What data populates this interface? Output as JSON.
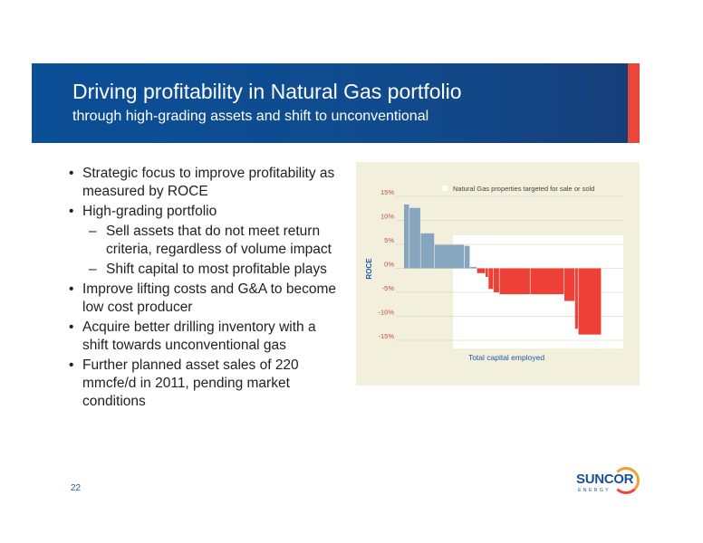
{
  "header": {
    "title": "Driving profitability in Natural Gas portfolio",
    "subtitle": "through high-grading assets and shift to unconventional"
  },
  "bullets": [
    {
      "level": 1,
      "text": "Strategic focus to improve profitability as measured by ROCE"
    },
    {
      "level": 1,
      "text": "High-grading portfolio"
    },
    {
      "level": 2,
      "text": "Sell assets that do not meet return criteria, regardless of volume impact"
    },
    {
      "level": 2,
      "text": "Shift capital to most profitable plays"
    },
    {
      "level": 1,
      "text": "Improve lifting costs and G&A to become low cost producer"
    },
    {
      "level": 1,
      "text": "Acquire better drilling inventory with a shift towards unconventional gas"
    },
    {
      "level": 1,
      "text": "Further planned asset sales of 220 mmcfe/d in 2011, pending market conditions"
    }
  ],
  "bullet_markers": {
    "level1": "•",
    "level2": "–"
  },
  "chart_data": {
    "type": "bar",
    "title": "",
    "xlabel": "Total capital employed",
    "ylabel": "ROCE",
    "ylim": [
      -15,
      15
    ],
    "yticks": [
      "15%",
      "10%",
      "5%",
      "0%",
      "-5%",
      "-10%",
      "-15%"
    ],
    "ytick_values": [
      15,
      10,
      5,
      0,
      -5,
      -10,
      -15
    ],
    "legend": [
      "Natural Gas properties targeted for sale or sold"
    ],
    "x_range": [
      0,
      100
    ],
    "bars": [
      {
        "start": 0,
        "end": 2.8,
        "value": 13.3,
        "group": "positive"
      },
      {
        "start": 2.8,
        "end": 8.5,
        "value": 12.6,
        "group": "positive"
      },
      {
        "start": 8.5,
        "end": 15.5,
        "value": 7.3,
        "group": "positive"
      },
      {
        "start": 15.5,
        "end": 30.7,
        "value": 4.9,
        "group": "positive"
      },
      {
        "start": 30.7,
        "end": 33.5,
        "value": 4.7,
        "group": "positive"
      },
      {
        "start": 33.5,
        "end": 37.0,
        "value": 0.3,
        "group": "positive"
      },
      {
        "start": 37.0,
        "end": 41.3,
        "value": -1.0,
        "group": "negative"
      },
      {
        "start": 41.3,
        "end": 42.8,
        "value": -1.8,
        "group": "negative"
      },
      {
        "start": 42.8,
        "end": 45.4,
        "value": -4.3,
        "group": "negative"
      },
      {
        "start": 45.4,
        "end": 48.4,
        "value": -5.0,
        "group": "negative"
      },
      {
        "start": 48.4,
        "end": 64.0,
        "value": -5.4,
        "group": "negative"
      },
      {
        "start": 64.0,
        "end": 81.2,
        "value": -5.4,
        "group": "negative"
      },
      {
        "start": 81.2,
        "end": 86.6,
        "value": -6.8,
        "group": "negative"
      },
      {
        "start": 86.6,
        "end": 88.3,
        "value": -12.6,
        "group": "negative"
      },
      {
        "start": 88.3,
        "end": 100,
        "value": -13.8,
        "group": "negative"
      }
    ],
    "colors": {
      "positive": "#86a6bf",
      "negative": "#ee4037",
      "grid": "#cfcab2",
      "plot_highlight": "#ffffff"
    },
    "grid": true,
    "legend_position": "top-right"
  },
  "footer": {
    "page_number": "22"
  },
  "logo": {
    "wordmark": "SUNCOR",
    "tagline": "ENERGY"
  }
}
